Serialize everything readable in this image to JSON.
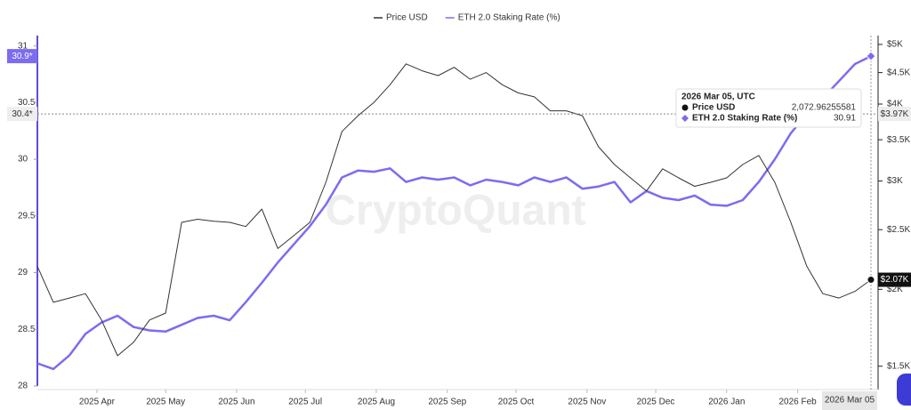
{
  "chart_data": {
    "type": "line",
    "x": [
      "2025-03-06",
      "2025-03-13",
      "2025-03-20",
      "2025-03-27",
      "2025-04-03",
      "2025-04-10",
      "2025-04-17",
      "2025-04-24",
      "2025-05-01",
      "2025-05-08",
      "2025-05-15",
      "2025-05-22",
      "2025-05-29",
      "2025-06-05",
      "2025-06-12",
      "2025-06-19",
      "2025-06-26",
      "2025-07-03",
      "2025-07-10",
      "2025-07-17",
      "2025-07-24",
      "2025-07-31",
      "2025-08-07",
      "2025-08-14",
      "2025-08-21",
      "2025-08-28",
      "2025-09-04",
      "2025-09-11",
      "2025-09-18",
      "2025-09-25",
      "2025-10-02",
      "2025-10-09",
      "2025-10-16",
      "2025-10-23",
      "2025-10-30",
      "2025-11-06",
      "2025-11-13",
      "2025-11-20",
      "2025-11-27",
      "2025-12-04",
      "2025-12-11",
      "2025-12-18",
      "2025-12-25",
      "2026-01-01",
      "2026-01-08",
      "2026-01-15",
      "2026-01-22",
      "2026-01-29",
      "2026-02-05",
      "2026-02-12",
      "2026-02-19",
      "2026-02-26",
      "2026-03-05"
    ],
    "series": [
      {
        "name": "ETH 2.0 Staking Rate (%)",
        "color": "#7b6cf0",
        "axis": "y",
        "values": [
          28.2,
          28.15,
          28.27,
          28.46,
          28.56,
          28.62,
          28.52,
          28.49,
          28.48,
          28.54,
          28.6,
          28.62,
          28.58,
          28.74,
          28.91,
          29.09,
          29.25,
          29.41,
          29.6,
          29.84,
          29.9,
          29.89,
          29.92,
          29.8,
          29.84,
          29.82,
          29.84,
          29.77,
          29.82,
          29.8,
          29.77,
          29.84,
          29.8,
          29.84,
          29.74,
          29.76,
          29.8,
          29.62,
          29.72,
          29.66,
          29.64,
          29.68,
          29.6,
          29.59,
          29.64,
          29.8,
          30.0,
          30.23,
          30.4,
          30.54,
          30.69,
          30.84,
          30.91
        ]
      },
      {
        "name": "Price USD",
        "color": "#333333",
        "axis": "y2",
        "values": [
          2180,
          1905,
          1936,
          1968,
          1783,
          1560,
          1640,
          1783,
          1830,
          2570,
          2600,
          2580,
          2570,
          2530,
          2700,
          2330,
          2445,
          2570,
          2985,
          3610,
          3830,
          4025,
          4300,
          4650,
          4530,
          4450,
          4590,
          4390,
          4500,
          4300,
          4170,
          4110,
          3900,
          3900,
          3830,
          3410,
          3190,
          3035,
          2890,
          3140,
          3035,
          2940,
          2985,
          3035,
          3190,
          3300,
          2985,
          2570,
          2180,
          1968,
          1936,
          1985,
          2072.96255581
        ]
      }
    ],
    "xlim": [
      "2025-03-06",
      "2026-03-05"
    ],
    "xticks": [
      {
        "value": "2025-04-01",
        "label": "2025 Apr"
      },
      {
        "value": "2025-05-01",
        "label": "2025 May"
      },
      {
        "value": "2025-06-01",
        "label": "2025 Jun"
      },
      {
        "value": "2025-07-01",
        "label": "2025 Jul"
      },
      {
        "value": "2025-08-01",
        "label": "2025 Aug"
      },
      {
        "value": "2025-09-01",
        "label": "2025 Sep"
      },
      {
        "value": "2025-10-01",
        "label": "2025 Oct"
      },
      {
        "value": "2025-11-01",
        "label": "2025 Nov"
      },
      {
        "value": "2025-12-01",
        "label": "2025 Dec"
      },
      {
        "value": "2026-01-01",
        "label": "2026 Jan"
      },
      {
        "value": "2026-02-01",
        "label": "2026 Feb"
      }
    ],
    "ylim": [
      28,
      31.06
    ],
    "yticks": [
      28,
      28.5,
      29,
      29.5,
      30,
      30.5,
      31
    ],
    "y2lim": [
      1393,
      5100
    ],
    "y2_log": true,
    "y2ticks": [
      {
        "value": 1500,
        "label": "$1.5K"
      },
      {
        "value": 2000,
        "label": "$2K"
      },
      {
        "value": 2500,
        "label": "$2.5K"
      },
      {
        "value": 3000,
        "label": "$3K"
      },
      {
        "value": 3500,
        "label": "$3.5K"
      },
      {
        "value": 4000,
        "label": "$4K"
      },
      {
        "value": 4500,
        "label": "$4.5K"
      },
      {
        "value": 5000,
        "label": "$5K"
      }
    ],
    "grid": false,
    "legend_position": "top",
    "watermark": "CryptoQuant",
    "crosshair": {
      "y": 30.4,
      "y_label": "30.4*",
      "y2_label": "$3.97K",
      "x_label": "2026 Mar 05"
    },
    "last_labels": {
      "y": "30.9*",
      "y2": "$2.07K"
    },
    "tooltip": {
      "title": "2026 Mar 05, UTC",
      "rows": [
        {
          "name": "Price USD",
          "value": "2,072.96255581"
        },
        {
          "name": "ETH 2.0 Staking Rate (%)",
          "value": "30.91"
        }
      ]
    }
  }
}
